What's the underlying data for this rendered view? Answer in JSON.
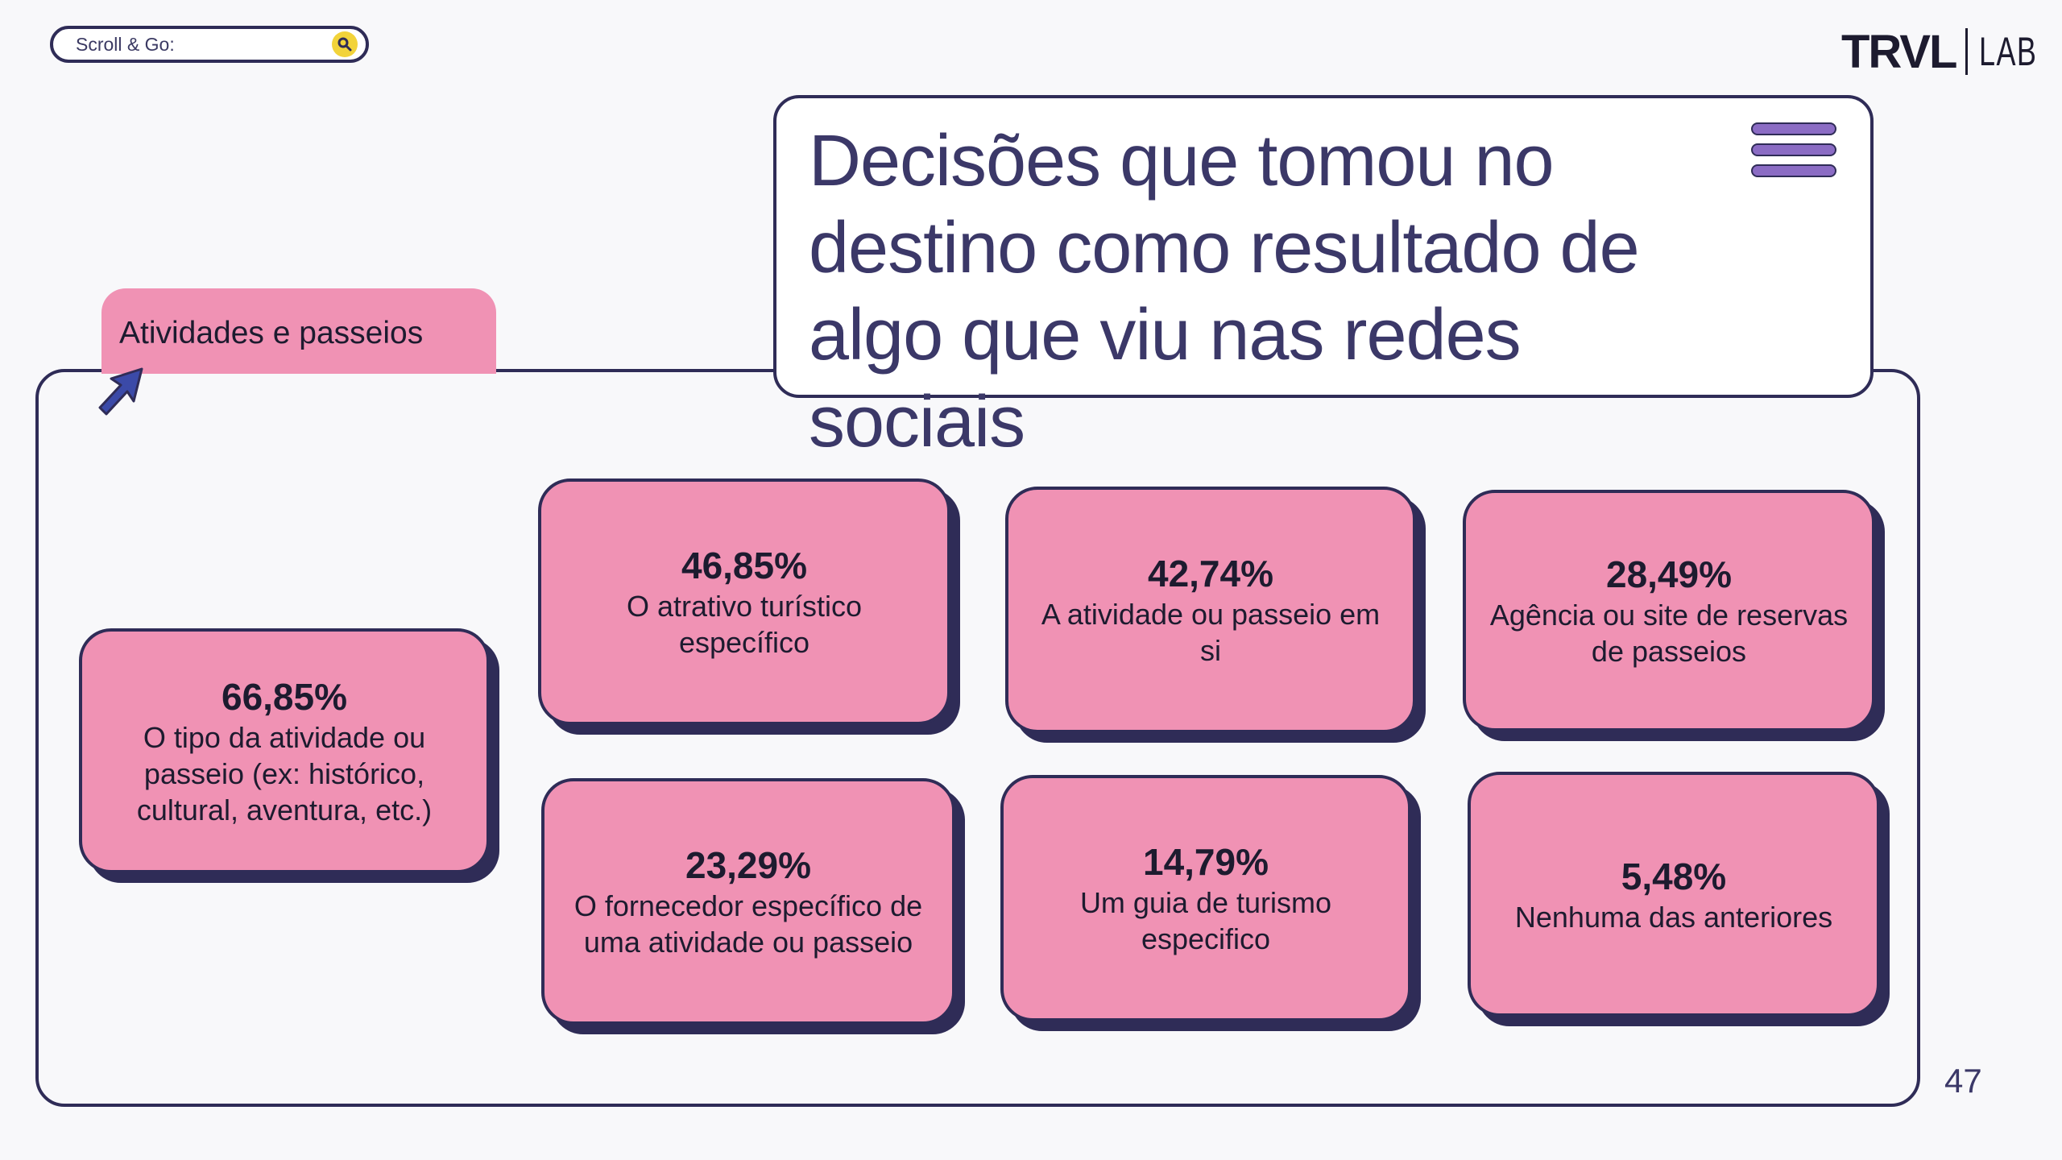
{
  "search": {
    "label": "Scroll & Go:"
  },
  "logo": {
    "main": "TRVL",
    "sub": "LAB"
  },
  "title": "Decisões que tomou no destino como resultado de algo que viu nas redes sociais",
  "category_tab": "Atividades e passeios",
  "cards": [
    {
      "value": "66,85%",
      "label": "O tipo da atividade ou passeio (ex: histórico, cultural, aventura, etc.)"
    },
    {
      "value": "46,85%",
      "label": "O atrativo turístico específico"
    },
    {
      "value": "42,74%",
      "label": "A atividade ou passeio em si"
    },
    {
      "value": "28,49%",
      "label": "Agência ou site de reservas de passeios"
    },
    {
      "value": "23,29%",
      "label": "O fornecedor específico de uma atividade ou passeio"
    },
    {
      "value": "14,79%",
      "label": "Um guia de turismo especifico"
    },
    {
      "value": "5,48%",
      "label": "Nenhuma das anteriores"
    }
  ],
  "page_number": "47",
  "colors": {
    "card_pink": "#f092b4",
    "outline_navy": "#2f2c57",
    "title_text": "#3b3868",
    "menu_purple": "#8b6cc4",
    "search_yellow": "#f2d33a"
  }
}
